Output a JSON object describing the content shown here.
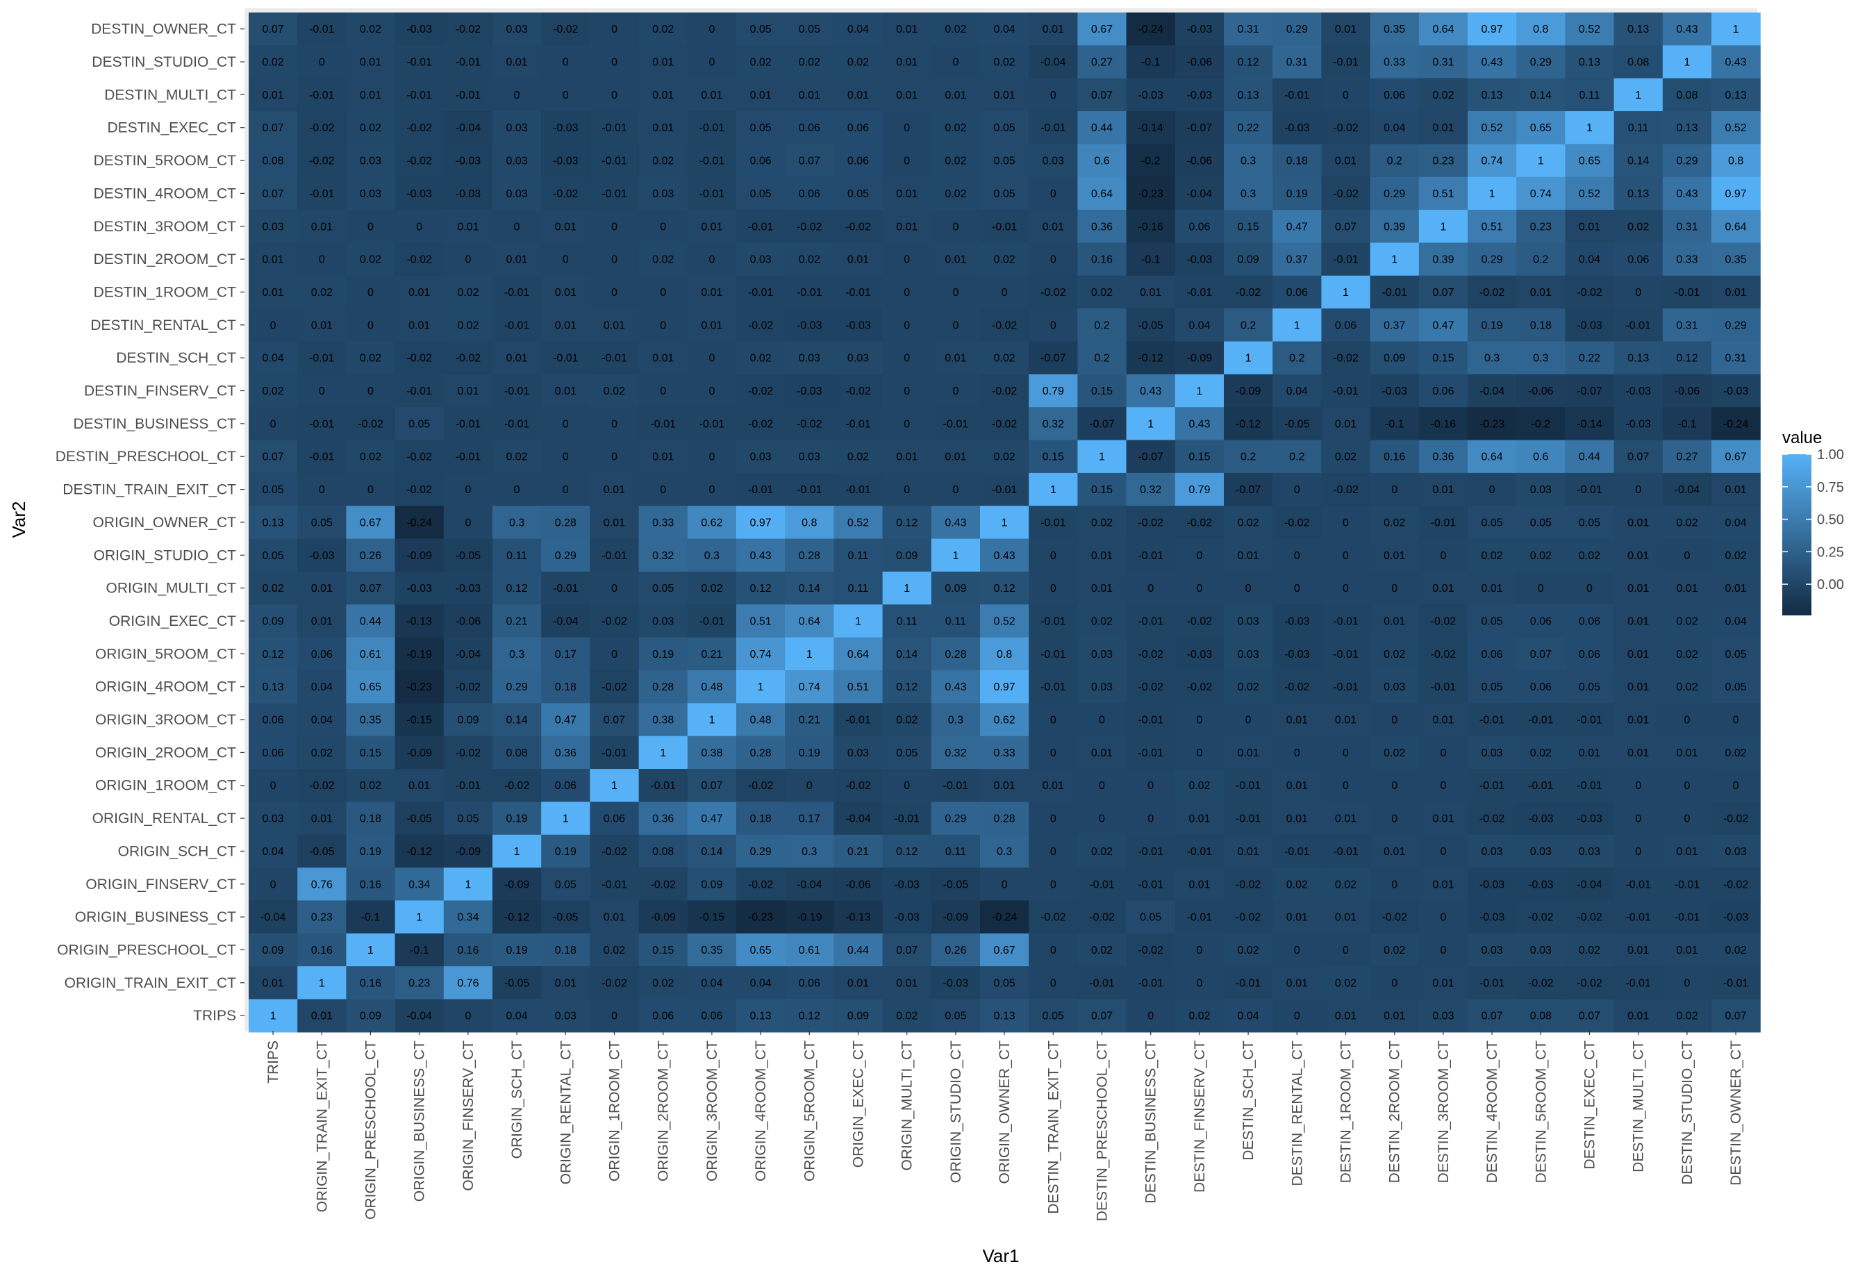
{
  "chart_data": {
    "type": "heatmap",
    "xlabel": "Var1",
    "ylabel": "Var2",
    "legend": {
      "title": "value",
      "position": "right",
      "ticks": [
        "1.00",
        "0.75",
        "0.50",
        "0.25",
        "0.00"
      ],
      "low_color": "#132b43",
      "high_color": "#56b1f7"
    },
    "x": [
      "TRIPS",
      "ORIGIN_TRAIN_EXIT_CT",
      "ORIGIN_PRESCHOOL_CT",
      "ORIGIN_BUSINESS_CT",
      "ORIGIN_FINSERV_CT",
      "ORIGIN_SCH_CT",
      "ORIGIN_RENTAL_CT",
      "ORIGIN_1ROOM_CT",
      "ORIGIN_2ROOM_CT",
      "ORIGIN_3ROOM_CT",
      "ORIGIN_4ROOM_CT",
      "ORIGIN_5ROOM_CT",
      "ORIGIN_EXEC_CT",
      "ORIGIN_MULTI_CT",
      "ORIGIN_STUDIO_CT",
      "ORIGIN_OWNER_CT",
      "DESTIN_TRAIN_EXIT_CT",
      "DESTIN_PRESCHOOL_CT",
      "DESTIN_BUSINESS_CT",
      "DESTIN_FINSERV_CT",
      "DESTIN_SCH_CT",
      "DESTIN_RENTAL_CT",
      "DESTIN_1ROOM_CT",
      "DESTIN_2ROOM_CT",
      "DESTIN_3ROOM_CT",
      "DESTIN_4ROOM_CT",
      "DESTIN_5ROOM_CT",
      "DESTIN_EXEC_CT",
      "DESTIN_MULTI_CT",
      "DESTIN_STUDIO_CT",
      "DESTIN_OWNER_CT"
    ],
    "y": [
      "DESTIN_OWNER_CT",
      "DESTIN_STUDIO_CT",
      "DESTIN_MULTI_CT",
      "DESTIN_EXEC_CT",
      "DESTIN_5ROOM_CT",
      "DESTIN_4ROOM_CT",
      "DESTIN_3ROOM_CT",
      "DESTIN_2ROOM_CT",
      "DESTIN_1ROOM_CT",
      "DESTIN_RENTAL_CT",
      "DESTIN_SCH_CT",
      "DESTIN_FINSERV_CT",
      "DESTIN_BUSINESS_CT",
      "DESTIN_PRESCHOOL_CT",
      "DESTIN_TRAIN_EXIT_CT",
      "ORIGIN_OWNER_CT",
      "ORIGIN_STUDIO_CT",
      "ORIGIN_MULTI_CT",
      "ORIGIN_EXEC_CT",
      "ORIGIN_5ROOM_CT",
      "ORIGIN_4ROOM_CT",
      "ORIGIN_3ROOM_CT",
      "ORIGIN_2ROOM_CT",
      "ORIGIN_1ROOM_CT",
      "ORIGIN_RENTAL_CT",
      "ORIGIN_SCH_CT",
      "ORIGIN_FINSERV_CT",
      "ORIGIN_BUSINESS_CT",
      "ORIGIN_PRESCHOOL_CT",
      "ORIGIN_TRAIN_EXIT_CT",
      "TRIPS"
    ],
    "values": [
      [
        0.07,
        -0.01,
        0.02,
        -0.03,
        -0.02,
        0.03,
        -0.02,
        0,
        0.02,
        0,
        0.05,
        0.05,
        0.04,
        0.01,
        0.02,
        0.04,
        0.01,
        0.67,
        -0.24,
        -0.03,
        0.31,
        0.29,
        0.01,
        0.35,
        0.64,
        0.97,
        0.8,
        0.52,
        0.13,
        0.43,
        1
      ],
      [
        0.02,
        0,
        0.01,
        -0.01,
        -0.01,
        0.01,
        0,
        0,
        0.01,
        0,
        0.02,
        0.02,
        0.02,
        0.01,
        0,
        0.02,
        -0.04,
        0.27,
        -0.1,
        -0.06,
        0.12,
        0.31,
        -0.01,
        0.33,
        0.31,
        0.43,
        0.29,
        0.13,
        0.08,
        1,
        0.43
      ],
      [
        0.01,
        -0.01,
        0.01,
        -0.01,
        -0.01,
        0,
        0,
        0,
        0.01,
        0.01,
        0.01,
        0.01,
        0.01,
        0.01,
        0.01,
        0.01,
        0,
        0.07,
        -0.03,
        -0.03,
        0.13,
        -0.01,
        0,
        0.06,
        0.02,
        0.13,
        0.14,
        0.11,
        1,
        0.08,
        0.13
      ],
      [
        0.07,
        -0.02,
        0.02,
        -0.02,
        -0.04,
        0.03,
        -0.03,
        -0.01,
        0.01,
        -0.01,
        0.05,
        0.06,
        0.06,
        0,
        0.02,
        0.05,
        -0.01,
        0.44,
        -0.14,
        -0.07,
        0.22,
        -0.03,
        -0.02,
        0.04,
        0.01,
        0.52,
        0.65,
        1,
        0.11,
        0.13,
        0.52
      ],
      [
        0.08,
        -0.02,
        0.03,
        -0.02,
        -0.03,
        0.03,
        -0.03,
        -0.01,
        0.02,
        -0.01,
        0.06,
        0.07,
        0.06,
        0,
        0.02,
        0.05,
        0.03,
        0.6,
        -0.2,
        -0.06,
        0.3,
        0.18,
        0.01,
        0.2,
        0.23,
        0.74,
        1,
        0.65,
        0.14,
        0.29,
        0.8
      ],
      [
        0.07,
        -0.01,
        0.03,
        -0.03,
        -0.03,
        0.03,
        -0.02,
        -0.01,
        0.03,
        -0.01,
        0.05,
        0.06,
        0.05,
        0.01,
        0.02,
        0.05,
        0,
        0.64,
        -0.23,
        -0.04,
        0.3,
        0.19,
        -0.02,
        0.29,
        0.51,
        1,
        0.74,
        0.52,
        0.13,
        0.43,
        0.97
      ],
      [
        0.03,
        0.01,
        0,
        0,
        0.01,
        0,
        0.01,
        0,
        0,
        0.01,
        -0.01,
        -0.02,
        -0.02,
        0.01,
        0,
        -0.01,
        0.01,
        0.36,
        -0.16,
        0.06,
        0.15,
        0.47,
        0.07,
        0.39,
        1,
        0.51,
        0.23,
        0.01,
        0.02,
        0.31,
        0.64
      ],
      [
        0.01,
        0,
        0.02,
        -0.02,
        0,
        0.01,
        0,
        0,
        0.02,
        0,
        0.03,
        0.02,
        0.01,
        0,
        0.01,
        0.02,
        0,
        0.16,
        -0.1,
        -0.03,
        0.09,
        0.37,
        -0.01,
        1,
        0.39,
        0.29,
        0.2,
        0.04,
        0.06,
        0.33,
        0.35
      ],
      [
        0.01,
        0.02,
        0,
        0.01,
        0.02,
        -0.01,
        0.01,
        0,
        0,
        0.01,
        -0.01,
        -0.01,
        -0.01,
        0,
        0,
        0,
        -0.02,
        0.02,
        0.01,
        -0.01,
        -0.02,
        0.06,
        1,
        -0.01,
        0.07,
        -0.02,
        0.01,
        -0.02,
        0,
        -0.01,
        0.01
      ],
      [
        0,
        0.01,
        0,
        0.01,
        0.02,
        -0.01,
        0.01,
        0.01,
        0,
        0.01,
        -0.02,
        -0.03,
        -0.03,
        0,
        0,
        -0.02,
        0,
        0.2,
        -0.05,
        0.04,
        0.2,
        1,
        0.06,
        0.37,
        0.47,
        0.19,
        0.18,
        -0.03,
        -0.01,
        0.31,
        0.29
      ],
      [
        0.04,
        -0.01,
        0.02,
        -0.02,
        -0.02,
        0.01,
        -0.01,
        -0.01,
        0.01,
        0,
        0.02,
        0.03,
        0.03,
        0,
        0.01,
        0.02,
        -0.07,
        0.2,
        -0.12,
        -0.09,
        1,
        0.2,
        -0.02,
        0.09,
        0.15,
        0.3,
        0.3,
        0.22,
        0.13,
        0.12,
        0.31
      ],
      [
        0.02,
        0,
        0,
        -0.01,
        0.01,
        -0.01,
        0.01,
        0.02,
        0,
        0,
        -0.02,
        -0.03,
        -0.02,
        0,
        0,
        -0.02,
        0.79,
        0.15,
        0.43,
        1,
        -0.09,
        0.04,
        -0.01,
        -0.03,
        0.06,
        -0.04,
        -0.06,
        -0.07,
        -0.03,
        -0.06,
        -0.03
      ],
      [
        0,
        -0.01,
        -0.02,
        0.05,
        -0.01,
        -0.01,
        0,
        0,
        -0.01,
        -0.01,
        -0.02,
        -0.02,
        -0.01,
        0,
        -0.01,
        -0.02,
        0.32,
        -0.07,
        1,
        0.43,
        -0.12,
        -0.05,
        0.01,
        -0.1,
        -0.16,
        -0.23,
        -0.2,
        -0.14,
        -0.03,
        -0.1,
        -0.24
      ],
      [
        0.07,
        -0.01,
        0.02,
        -0.02,
        -0.01,
        0.02,
        0,
        0,
        0.01,
        0,
        0.03,
        0.03,
        0.02,
        0.01,
        0.01,
        0.02,
        0.15,
        1,
        -0.07,
        0.15,
        0.2,
        0.2,
        0.02,
        0.16,
        0.36,
        0.64,
        0.6,
        0.44,
        0.07,
        0.27,
        0.67
      ],
      [
        0.05,
        0,
        0,
        -0.02,
        0,
        0,
        0,
        0.01,
        0,
        0,
        -0.01,
        -0.01,
        -0.01,
        0,
        0,
        -0.01,
        1,
        0.15,
        0.32,
        0.79,
        -0.07,
        0,
        -0.02,
        0,
        0.01,
        0,
        0.03,
        -0.01,
        0,
        -0.04,
        0.01
      ],
      [
        0.13,
        0.05,
        0.67,
        -0.24,
        0,
        0.3,
        0.28,
        0.01,
        0.33,
        0.62,
        0.97,
        0.8,
        0.52,
        0.12,
        0.43,
        1,
        -0.01,
        0.02,
        -0.02,
        -0.02,
        0.02,
        -0.02,
        0,
        0.02,
        -0.01,
        0.05,
        0.05,
        0.05,
        0.01,
        0.02,
        0.04
      ],
      [
        0.05,
        -0.03,
        0.26,
        -0.09,
        -0.05,
        0.11,
        0.29,
        -0.01,
        0.32,
        0.3,
        0.43,
        0.28,
        0.11,
        0.09,
        1,
        0.43,
        0,
        0.01,
        -0.01,
        0,
        0.01,
        0,
        0,
        0.01,
        0,
        0.02,
        0.02,
        0.02,
        0.01,
        0,
        0.02
      ],
      [
        0.02,
        0.01,
        0.07,
        -0.03,
        -0.03,
        0.12,
        -0.01,
        0,
        0.05,
        0.02,
        0.12,
        0.14,
        0.11,
        1,
        0.09,
        0.12,
        0,
        0.01,
        0,
        0,
        0,
        0,
        0,
        0,
        0.01,
        0.01,
        0,
        0,
        0.01,
        0.01,
        0.01
      ],
      [
        0.09,
        0.01,
        0.44,
        -0.13,
        -0.06,
        0.21,
        -0.04,
        -0.02,
        0.03,
        -0.01,
        0.51,
        0.64,
        1,
        0.11,
        0.11,
        0.52,
        -0.01,
        0.02,
        -0.01,
        -0.02,
        0.03,
        -0.03,
        -0.01,
        0.01,
        -0.02,
        0.05,
        0.06,
        0.06,
        0.01,
        0.02,
        0.04
      ],
      [
        0.12,
        0.06,
        0.61,
        -0.19,
        -0.04,
        0.3,
        0.17,
        0,
        0.19,
        0.21,
        0.74,
        1,
        0.64,
        0.14,
        0.28,
        0.8,
        -0.01,
        0.03,
        -0.02,
        -0.03,
        0.03,
        -0.03,
        -0.01,
        0.02,
        -0.02,
        0.06,
        0.07,
        0.06,
        0.01,
        0.02,
        0.05
      ],
      [
        0.13,
        0.04,
        0.65,
        -0.23,
        -0.02,
        0.29,
        0.18,
        -0.02,
        0.28,
        0.48,
        1,
        0.74,
        0.51,
        0.12,
        0.43,
        0.97,
        -0.01,
        0.03,
        -0.02,
        -0.02,
        0.02,
        -0.02,
        -0.01,
        0.03,
        -0.01,
        0.05,
        0.06,
        0.05,
        0.01,
        0.02,
        0.05
      ],
      [
        0.06,
        0.04,
        0.35,
        -0.15,
        0.09,
        0.14,
        0.47,
        0.07,
        0.38,
        1,
        0.48,
        0.21,
        -0.01,
        0.02,
        0.3,
        0.62,
        0,
        0,
        -0.01,
        0,
        0,
        0.01,
        0.01,
        0,
        0.01,
        -0.01,
        -0.01,
        -0.01,
        0.01,
        0,
        0
      ],
      [
        0.06,
        0.02,
        0.15,
        -0.09,
        -0.02,
        0.08,
        0.36,
        -0.01,
        1,
        0.38,
        0.28,
        0.19,
        0.03,
        0.05,
        0.32,
        0.33,
        0,
        0.01,
        -0.01,
        0,
        0.01,
        0,
        0,
        0.02,
        0,
        0.03,
        0.02,
        0.01,
        0.01,
        0.01,
        0.02
      ],
      [
        0,
        -0.02,
        0.02,
        0.01,
        -0.01,
        -0.02,
        0.06,
        1,
        -0.01,
        0.07,
        -0.02,
        0,
        -0.02,
        0,
        -0.01,
        0.01,
        0.01,
        0,
        0,
        0.02,
        -0.01,
        0.01,
        0,
        0,
        0,
        -0.01,
        -0.01,
        -0.01,
        0,
        0,
        0
      ],
      [
        0.03,
        0.01,
        0.18,
        -0.05,
        0.05,
        0.19,
        1,
        0.06,
        0.36,
        0.47,
        0.18,
        0.17,
        -0.04,
        -0.01,
        0.29,
        0.28,
        0,
        0,
        0,
        0.01,
        -0.01,
        0.01,
        0.01,
        0,
        0.01,
        -0.02,
        -0.03,
        -0.03,
        0,
        0,
        -0.02
      ],
      [
        0.04,
        -0.05,
        0.19,
        -0.12,
        -0.09,
        1,
        0.19,
        -0.02,
        0.08,
        0.14,
        0.29,
        0.3,
        0.21,
        0.12,
        0.11,
        0.3,
        0,
        0.02,
        -0.01,
        -0.01,
        0.01,
        -0.01,
        -0.01,
        0.01,
        0,
        0.03,
        0.03,
        0.03,
        0,
        0.01,
        0.03
      ],
      [
        0,
        0.76,
        0.16,
        0.34,
        1,
        -0.09,
        0.05,
        -0.01,
        -0.02,
        0.09,
        -0.02,
        -0.04,
        -0.06,
        -0.03,
        -0.05,
        0,
        0,
        -0.01,
        -0.01,
        0.01,
        -0.02,
        0.02,
        0.02,
        0,
        0.01,
        -0.03,
        -0.03,
        -0.04,
        -0.01,
        -0.01,
        -0.02
      ],
      [
        -0.04,
        0.23,
        -0.1,
        1,
        0.34,
        -0.12,
        -0.05,
        0.01,
        -0.09,
        -0.15,
        -0.23,
        -0.19,
        -0.13,
        -0.03,
        -0.09,
        -0.24,
        -0.02,
        -0.02,
        0.05,
        -0.01,
        -0.02,
        0.01,
        0.01,
        -0.02,
        0,
        -0.03,
        -0.02,
        -0.02,
        -0.01,
        -0.01,
        -0.03
      ],
      [
        0.09,
        0.16,
        1,
        -0.1,
        0.16,
        0.19,
        0.18,
        0.02,
        0.15,
        0.35,
        0.65,
        0.61,
        0.44,
        0.07,
        0.26,
        0.67,
        0,
        0.02,
        -0.02,
        0,
        0.02,
        0,
        0,
        0.02,
        0,
        0.03,
        0.03,
        0.02,
        0.01,
        0.01,
        0.02
      ],
      [
        0.01,
        1,
        0.16,
        0.23,
        0.76,
        -0.05,
        0.01,
        -0.02,
        0.02,
        0.04,
        0.04,
        0.06,
        0.01,
        0.01,
        -0.03,
        0.05,
        0,
        -0.01,
        -0.01,
        0,
        -0.01,
        0.01,
        0.02,
        0,
        0.01,
        -0.01,
        -0.02,
        -0.02,
        -0.01,
        0,
        -0.01
      ],
      [
        1,
        0.01,
        0.09,
        -0.04,
        0,
        0.04,
        0.03,
        0,
        0.06,
        0.06,
        0.13,
        0.12,
        0.09,
        0.02,
        0.05,
        0.13,
        0.05,
        0.07,
        0,
        0.02,
        0.04,
        0,
        0.01,
        0.01,
        0.03,
        0.07,
        0.08,
        0.07,
        0.01,
        0.02,
        0.07
      ]
    ]
  }
}
